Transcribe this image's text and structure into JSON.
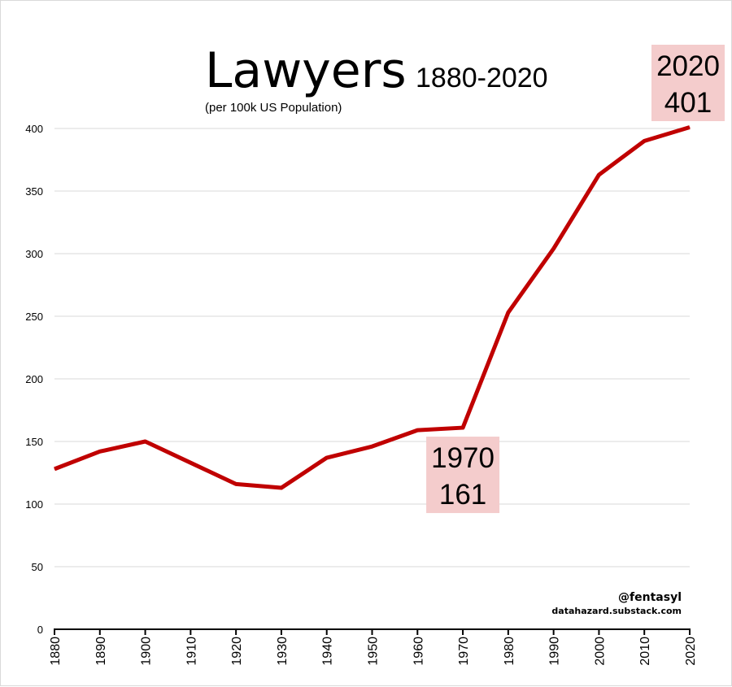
{
  "chart_data": {
    "type": "line",
    "title": "Lawyers",
    "title_range": "1880-2020",
    "subtitle": "(per 100k US Population)",
    "xlabel": "",
    "ylabel": "",
    "x": [
      1880,
      1890,
      1900,
      1910,
      1920,
      1930,
      1940,
      1950,
      1960,
      1970,
      1980,
      1990,
      2000,
      2010,
      2020
    ],
    "series": [
      {
        "values": [
          128,
          142,
          150,
          133,
          116,
          113,
          137,
          146,
          159,
          161,
          253,
          304,
          363,
          390,
          401
        ]
      }
    ],
    "xlim": [
      1880,
      2020
    ],
    "ylim": [
      0,
      400
    ],
    "yticks": [
      0,
      50,
      100,
      150,
      200,
      250,
      300,
      350,
      400
    ],
    "xticks": [
      "1880",
      "1890",
      "1900",
      "1910",
      "1920",
      "1930",
      "1940",
      "1950",
      "1960",
      "1970",
      "1980",
      "1990",
      "2000",
      "2010",
      "2020"
    ],
    "grid": true,
    "line_color": "#c00000",
    "annotations": [
      {
        "year": "1970",
        "value": "161",
        "x": 1970,
        "y": 161,
        "box_color": "#f4cccc"
      },
      {
        "year": "2020",
        "value": "401",
        "x": 2020,
        "y": 401,
        "box_color": "#f4cccc"
      }
    ],
    "credits": {
      "handle": "@fentasyl",
      "site": "datahazard.substack.com"
    }
  }
}
